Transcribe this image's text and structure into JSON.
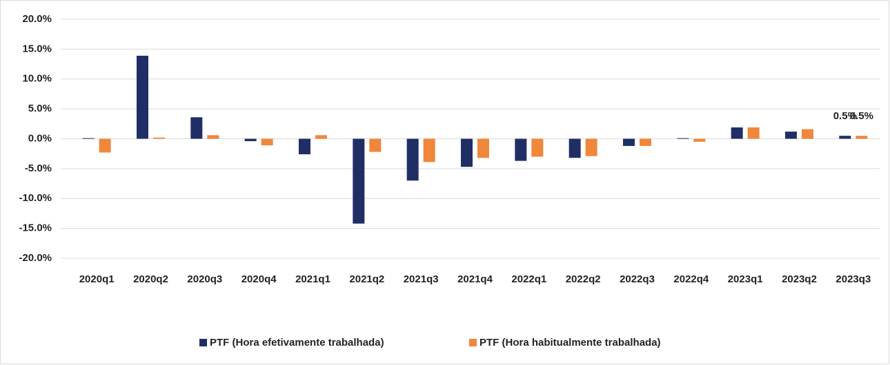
{
  "chart_data": {
    "type": "bar",
    "categories": [
      "2020q1",
      "2020q2",
      "2020q3",
      "2020q4",
      "2021q1",
      "2021q2",
      "2021q3",
      "2021q4",
      "2022q1",
      "2022q2",
      "2022q3",
      "2022q4",
      "2023q1",
      "2023q2",
      "2023q3"
    ],
    "series": [
      {
        "name": "PTF (Hora efetivamente trabalhada)",
        "color": "#1f2f66",
        "values": [
          0.1,
          13.9,
          3.6,
          -0.4,
          -2.6,
          -14.2,
          -7.0,
          -4.7,
          -3.7,
          -3.2,
          -1.2,
          0.1,
          1.9,
          1.2,
          0.5
        ],
        "value_labels": [
          null,
          null,
          null,
          null,
          null,
          null,
          null,
          null,
          null,
          null,
          null,
          null,
          null,
          null,
          "0.5%"
        ]
      },
      {
        "name": "PTF (Hora habitualmente trabalhada)",
        "color": "#f0873a",
        "values": [
          -2.3,
          0.2,
          0.6,
          -1.1,
          0.6,
          -2.2,
          -3.9,
          -3.2,
          -3.0,
          -2.9,
          -1.2,
          -0.5,
          1.9,
          1.6,
          0.5
        ],
        "value_labels": [
          null,
          null,
          null,
          null,
          null,
          null,
          null,
          null,
          null,
          null,
          null,
          null,
          null,
          null,
          "0.5%"
        ]
      }
    ],
    "ylim": [
      -20,
      20
    ],
    "yticks": [
      {
        "value": -20,
        "label": "-20.0%"
      },
      {
        "value": -15,
        "label": "-15.0%"
      },
      {
        "value": -10,
        "label": "-10.0%"
      },
      {
        "value": -5,
        "label": "-5.0%"
      },
      {
        "value": 0,
        "label": "0.0%"
      },
      {
        "value": 5,
        "label": "5.0%"
      },
      {
        "value": 10,
        "label": "10.0%"
      },
      {
        "value": 15,
        "label": "15.0%"
      },
      {
        "value": 20,
        "label": "20.0%"
      }
    ],
    "grid": true,
    "legend": "bottom"
  }
}
